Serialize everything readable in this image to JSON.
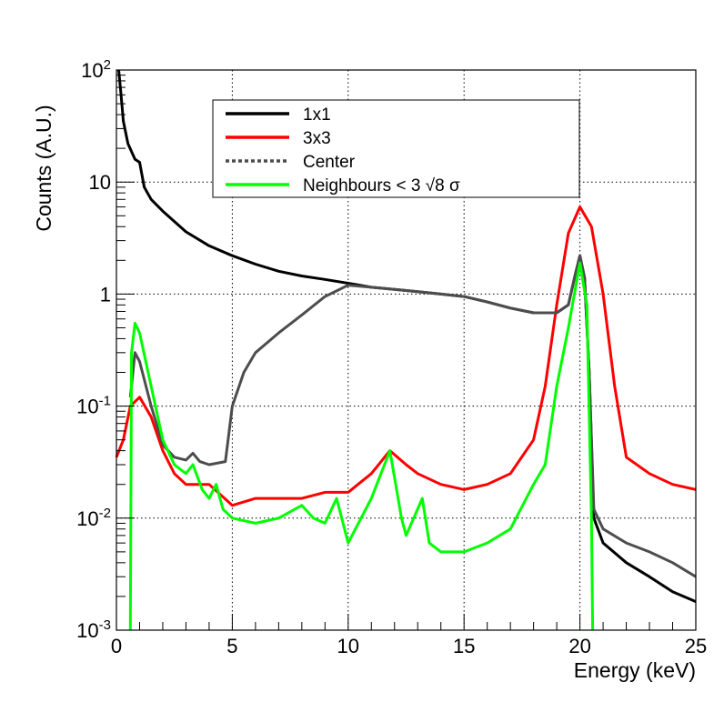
{
  "chart_data": {
    "type": "line",
    "xlabel": "Energy (keV)",
    "ylabel": "Counts (A.U.)",
    "xlim": [
      0,
      25
    ],
    "ylim": [
      0.001,
      100
    ],
    "yscale": "log",
    "grid": true,
    "legend_position": "top-center",
    "x_ticks": [
      "0",
      "5",
      "10",
      "15",
      "20",
      "25"
    ],
    "y_ticks": [
      {
        "base": "10",
        "exp": "2"
      },
      {
        "base": "10",
        "exp": ""
      },
      {
        "base": "1",
        "exp": ""
      },
      {
        "base": "10",
        "exp": "-1"
      },
      {
        "base": "10",
        "exp": "-2"
      },
      {
        "base": "10",
        "exp": "-3"
      }
    ],
    "series": [
      {
        "name": "1x1",
        "color": "#000000",
        "style": "solid",
        "points": [
          [
            0.1,
            100
          ],
          [
            0.2,
            60
          ],
          [
            0.3,
            35
          ],
          [
            0.5,
            22
          ],
          [
            0.8,
            16
          ],
          [
            1.0,
            15
          ],
          [
            1.2,
            9
          ],
          [
            1.5,
            7
          ],
          [
            2,
            5.5
          ],
          [
            3,
            3.6
          ],
          [
            4,
            2.7
          ],
          [
            5,
            2.2
          ],
          [
            6,
            1.85
          ],
          [
            7,
            1.6
          ],
          [
            8,
            1.45
          ],
          [
            9,
            1.35
          ],
          [
            10,
            1.25
          ],
          [
            11,
            1.15
          ],
          [
            12,
            1.1
          ],
          [
            13,
            1.05
          ],
          [
            14,
            1.0
          ],
          [
            15,
            0.95
          ],
          [
            16,
            0.85
          ],
          [
            17,
            0.75
          ],
          [
            18,
            0.68
          ],
          [
            19,
            0.68
          ],
          [
            19.5,
            0.8
          ],
          [
            19.8,
            1.5
          ],
          [
            20,
            2.2
          ],
          [
            20.2,
            1.4
          ],
          [
            20.4,
            0.2
          ],
          [
            20.6,
            0.01
          ],
          [
            21,
            0.006
          ],
          [
            22,
            0.004
          ],
          [
            23,
            0.003
          ],
          [
            24,
            0.0022
          ],
          [
            25,
            0.0018
          ]
        ]
      },
      {
        "name": "3x3",
        "color": "#ff0000",
        "style": "solid",
        "points": [
          [
            0,
            0.035
          ],
          [
            0.3,
            0.05
          ],
          [
            0.6,
            0.1
          ],
          [
            1,
            0.12
          ],
          [
            1.5,
            0.08
          ],
          [
            2,
            0.04
          ],
          [
            2.5,
            0.025
          ],
          [
            3,
            0.02
          ],
          [
            4,
            0.02
          ],
          [
            5,
            0.013
          ],
          [
            6,
            0.015
          ],
          [
            7,
            0.015
          ],
          [
            8,
            0.015
          ],
          [
            9,
            0.017
          ],
          [
            10,
            0.017
          ],
          [
            11,
            0.025
          ],
          [
            11.8,
            0.04
          ],
          [
            12.5,
            0.03
          ],
          [
            13,
            0.025
          ],
          [
            14,
            0.02
          ],
          [
            15,
            0.018
          ],
          [
            16,
            0.02
          ],
          [
            17,
            0.025
          ],
          [
            18,
            0.05
          ],
          [
            18.5,
            0.15
          ],
          [
            19,
            0.8
          ],
          [
            19.5,
            3.5
          ],
          [
            20,
            6
          ],
          [
            20.5,
            4
          ],
          [
            21,
            1
          ],
          [
            21.5,
            0.15
          ],
          [
            22,
            0.035
          ],
          [
            23,
            0.025
          ],
          [
            24,
            0.02
          ],
          [
            25,
            0.018
          ]
        ]
      },
      {
        "name": "Center",
        "color": "#4d4d4d",
        "style": "dotted",
        "points": [
          [
            0.6,
            0.12
          ],
          [
            0.8,
            0.3
          ],
          [
            1,
            0.25
          ],
          [
            1.5,
            0.1
          ],
          [
            2,
            0.045
          ],
          [
            2.5,
            0.035
          ],
          [
            3,
            0.033
          ],
          [
            3.3,
            0.038
          ],
          [
            3.6,
            0.032
          ],
          [
            4,
            0.03
          ],
          [
            4.7,
            0.032
          ],
          [
            5,
            0.1
          ],
          [
            5.5,
            0.2
          ],
          [
            6,
            0.3
          ],
          [
            7,
            0.45
          ],
          [
            8,
            0.65
          ],
          [
            9,
            0.95
          ],
          [
            10,
            1.2
          ],
          [
            11,
            1.15
          ],
          [
            12,
            1.1
          ],
          [
            13,
            1.05
          ],
          [
            14,
            1.0
          ],
          [
            15,
            0.95
          ],
          [
            16,
            0.85
          ],
          [
            17,
            0.75
          ],
          [
            18,
            0.68
          ],
          [
            19,
            0.68
          ],
          [
            19.5,
            0.8
          ],
          [
            19.8,
            1.5
          ],
          [
            20,
            2.2
          ],
          [
            20.2,
            1.4
          ],
          [
            20.4,
            0.2
          ],
          [
            20.6,
            0.012
          ],
          [
            21,
            0.008
          ],
          [
            22,
            0.006
          ],
          [
            23,
            0.005
          ],
          [
            24,
            0.004
          ],
          [
            25,
            0.003
          ]
        ]
      },
      {
        "name": "Neighbours < 3 √8 σ",
        "color": "#00ff00",
        "style": "solid",
        "points": [
          [
            0.6,
            0.001
          ],
          [
            0.65,
            0.3
          ],
          [
            0.8,
            0.55
          ],
          [
            1,
            0.45
          ],
          [
            1.5,
            0.15
          ],
          [
            2,
            0.05
          ],
          [
            2.5,
            0.03
          ],
          [
            3,
            0.025
          ],
          [
            3.3,
            0.03
          ],
          [
            3.7,
            0.018
          ],
          [
            4,
            0.015
          ],
          [
            4.3,
            0.02
          ],
          [
            4.6,
            0.012
          ],
          [
            5,
            0.01
          ],
          [
            6,
            0.009
          ],
          [
            7,
            0.01
          ],
          [
            8,
            0.013
          ],
          [
            8.5,
            0.01
          ],
          [
            9,
            0.009
          ],
          [
            9.5,
            0.015
          ],
          [
            10,
            0.006
          ],
          [
            11,
            0.015
          ],
          [
            11.8,
            0.04
          ],
          [
            12.3,
            0.01
          ],
          [
            12.5,
            0.007
          ],
          [
            13.2,
            0.015
          ],
          [
            13.5,
            0.006
          ],
          [
            14,
            0.005
          ],
          [
            15,
            0.005
          ],
          [
            16,
            0.006
          ],
          [
            17,
            0.008
          ],
          [
            18,
            0.02
          ],
          [
            18.5,
            0.03
          ],
          [
            19,
            0.15
          ],
          [
            19.5,
            0.5
          ],
          [
            20,
            1.9
          ],
          [
            20.3,
            0.8
          ],
          [
            20.5,
            0.01
          ],
          [
            20.55,
            0.001
          ]
        ]
      }
    ],
    "legend": {
      "entries": [
        "1x1",
        "3x3",
        "Center",
        "Neighbours < 3 √8 σ"
      ]
    }
  }
}
